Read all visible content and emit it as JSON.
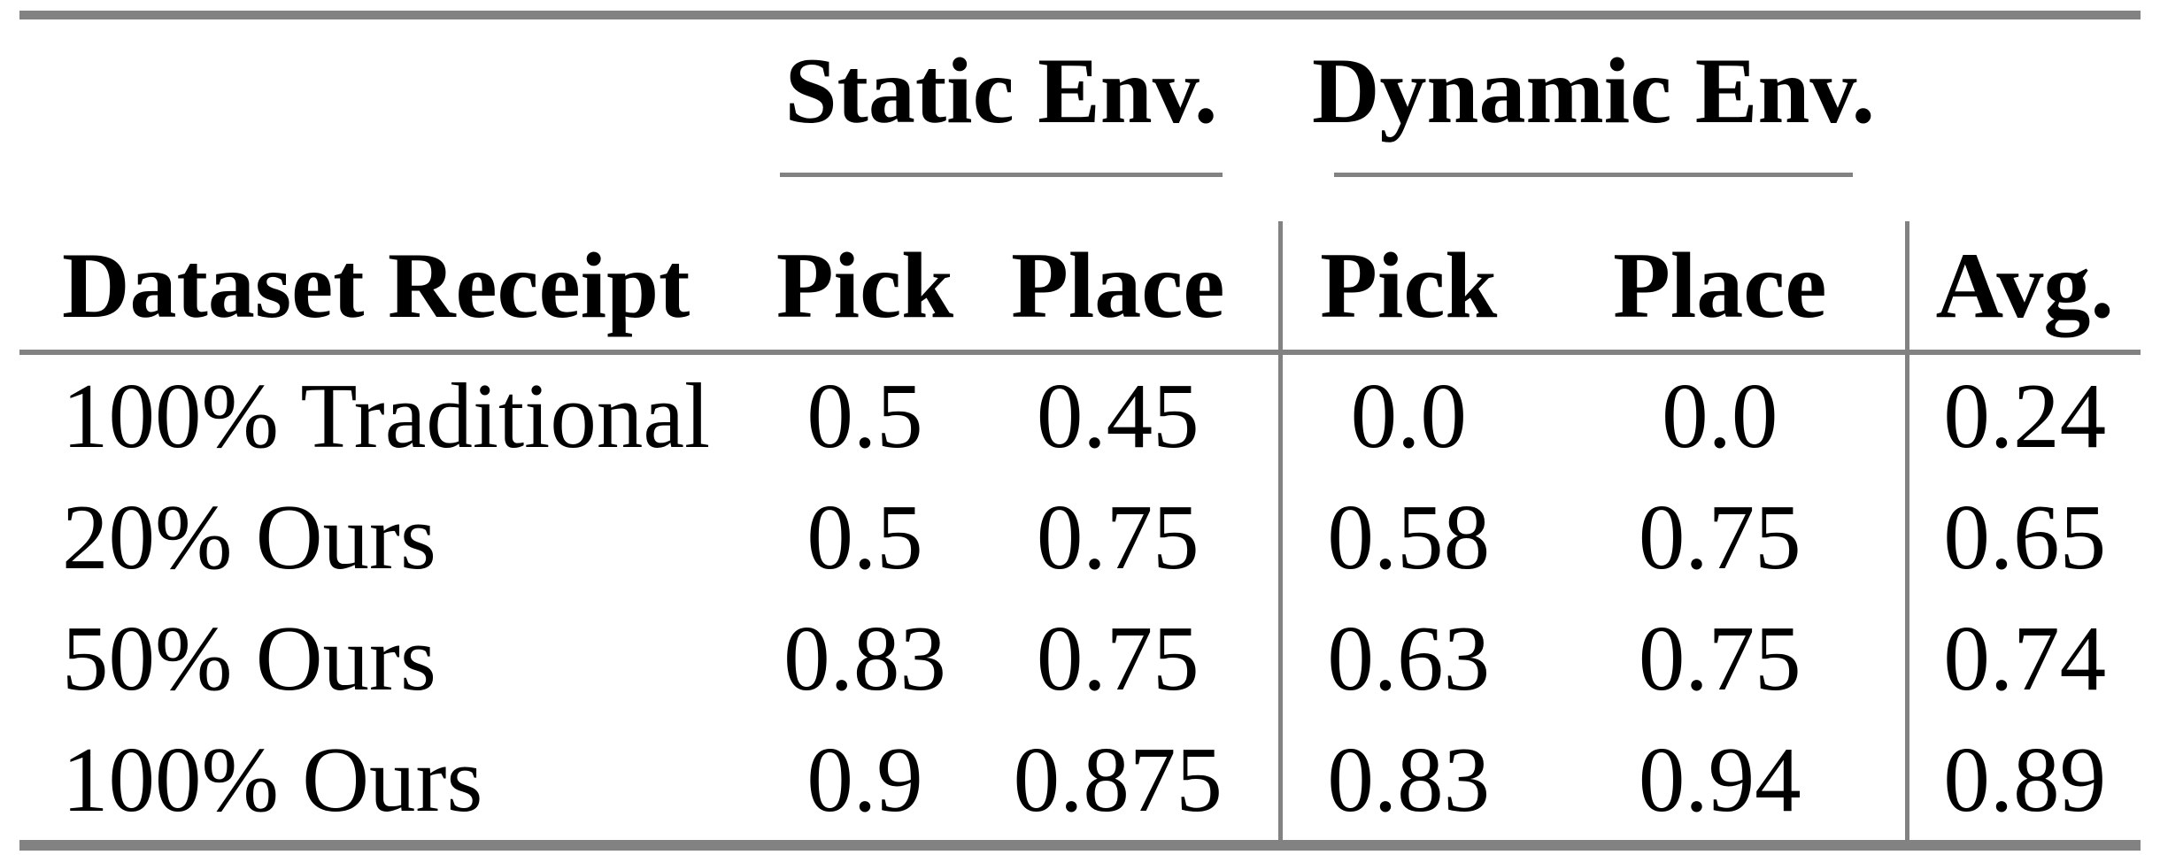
{
  "table": {
    "groups": [
      {
        "label": "Static Env."
      },
      {
        "label": "Dynamic Env."
      }
    ],
    "columns": [
      "Dataset Receipt",
      "Pick",
      "Place",
      "Pick",
      "Place",
      "Avg."
    ],
    "rows": [
      {
        "label": "100% Traditional",
        "values": [
          "0.5",
          "0.45",
          "0.0",
          "0.0",
          "0.24"
        ]
      },
      {
        "label": "20% Ours",
        "values": [
          "0.5",
          "0.75",
          "0.58",
          "0.75",
          "0.65"
        ]
      },
      {
        "label": "50% Ours",
        "values": [
          "0.83",
          "0.75",
          "0.63",
          "0.75",
          "0.74"
        ]
      },
      {
        "label": "100% Ours",
        "values": [
          "0.9",
          "0.875",
          "0.83",
          "0.94",
          "0.89"
        ]
      }
    ],
    "rule_color": "#828282",
    "text_color": "#000000"
  },
  "chart_data": {
    "type": "table",
    "title": "",
    "columns": [
      "Dataset Receipt",
      "Static Env. Pick",
      "Static Env. Place",
      "Dynamic Env. Pick",
      "Dynamic Env. Place",
      "Avg."
    ],
    "rows": [
      [
        "100% Traditional",
        0.5,
        0.45,
        0.0,
        0.0,
        0.24
      ],
      [
        "20% Ours",
        0.5,
        0.75,
        0.58,
        0.75,
        0.65
      ],
      [
        "50% Ours",
        0.83,
        0.75,
        0.63,
        0.75,
        0.74
      ],
      [
        "100% Ours",
        0.9,
        0.875,
        0.83,
        0.94,
        0.89
      ]
    ]
  }
}
